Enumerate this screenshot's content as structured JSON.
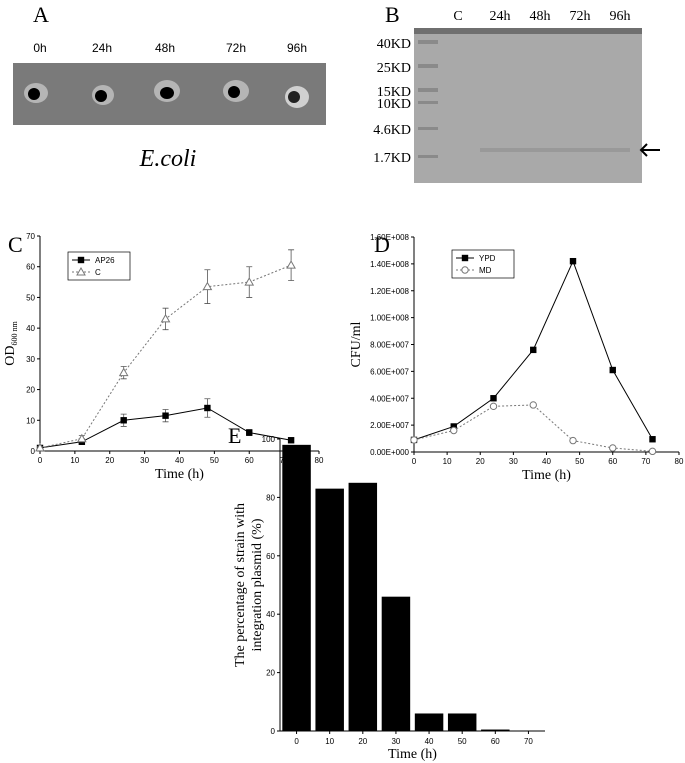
{
  "panel_a": {
    "label": "A",
    "lanes": [
      "0h",
      "24h",
      "48h",
      "72h",
      "96h"
    ],
    "caption": "E.coli"
  },
  "panel_b": {
    "label": "B",
    "lanes": [
      "C",
      "24h",
      "48h",
      "72h",
      "96h"
    ],
    "markers": [
      "40KD",
      "25KD",
      "15KD",
      "10KD",
      "4.6KD",
      "1.7KD"
    ]
  },
  "chart_data": [
    {
      "type": "line",
      "panel_label": "C",
      "xlabel": "Time (h)",
      "ylabel": "OD",
      "ylabel_sub": "600 nm",
      "x": [
        0,
        12,
        24,
        36,
        48,
        60,
        72
      ],
      "xlim": [
        0,
        80
      ],
      "xticks": [
        0,
        10,
        20,
        30,
        40,
        50,
        60,
        70,
        80
      ],
      "ylim": [
        0,
        70
      ],
      "yticks": [
        0,
        10,
        20,
        30,
        40,
        50,
        60,
        70
      ],
      "series": [
        {
          "name": "AP26",
          "color": "#000000",
          "marker": "square",
          "line_style": "solid",
          "values": [
            1,
            3,
            10,
            11.5,
            14,
            6,
            3.5
          ],
          "errors": [
            0.5,
            0.8,
            2,
            2,
            3,
            1,
            0.5
          ]
        },
        {
          "name": "C",
          "color": "#777777",
          "marker": "triangle",
          "line_style": "dotted",
          "values": [
            1,
            4,
            25.5,
            43,
            53.5,
            55,
            60.5
          ],
          "errors": [
            0.5,
            1,
            2,
            3.5,
            5.5,
            5,
            5
          ]
        }
      ]
    },
    {
      "type": "line",
      "panel_label": "D",
      "xlabel": "Time (h)",
      "ylabel": "CFU/ml",
      "x": [
        0,
        12,
        24,
        36,
        48,
        60,
        72
      ],
      "xlim": [
        0,
        80
      ],
      "xticks": [
        0,
        10,
        20,
        30,
        40,
        50,
        60,
        70,
        80
      ],
      "ylim": [
        0,
        160000000
      ],
      "yticks": [
        {
          "value": 0,
          "label": "0.00E+000"
        },
        {
          "value": 20000000,
          "label": "2.00E+007"
        },
        {
          "value": 40000000,
          "label": "4.00E+007"
        },
        {
          "value": 60000000,
          "label": "6.00E+007"
        },
        {
          "value": 80000000,
          "label": "8.00E+007"
        },
        {
          "value": 100000000,
          "label": "1.00E+008"
        },
        {
          "value": 120000000,
          "label": "1.20E+008"
        },
        {
          "value": 140000000,
          "label": "1.40E+008"
        },
        {
          "value": 160000000,
          "label": "1.60E+008"
        }
      ],
      "series": [
        {
          "name": "YPD",
          "color": "#000000",
          "marker": "square",
          "line_style": "solid",
          "values": [
            9000000,
            19000000,
            40000000,
            76000000,
            142000000,
            61000000,
            9500000
          ]
        },
        {
          "name": "MD",
          "color": "#777777",
          "marker": "circle",
          "line_style": "dotted",
          "values": [
            9000000,
            16000000,
            34000000,
            35000000,
            8500000,
            3000000,
            500000
          ]
        }
      ]
    },
    {
      "type": "bar",
      "panel_label": "E",
      "xlabel": "Time (h)",
      "ylabel": [
        "The percentage of strain with",
        "integration plasmid (%)"
      ],
      "categories": [
        "0",
        "10",
        "20",
        "30",
        "40",
        "50",
        "60",
        "70"
      ],
      "values": [
        98,
        83,
        85,
        46,
        6,
        6,
        0.5,
        null
      ],
      "color": "#000000",
      "ylim": [
        0,
        100
      ],
      "yticks": [
        0,
        20,
        40,
        60,
        80,
        100
      ]
    }
  ]
}
